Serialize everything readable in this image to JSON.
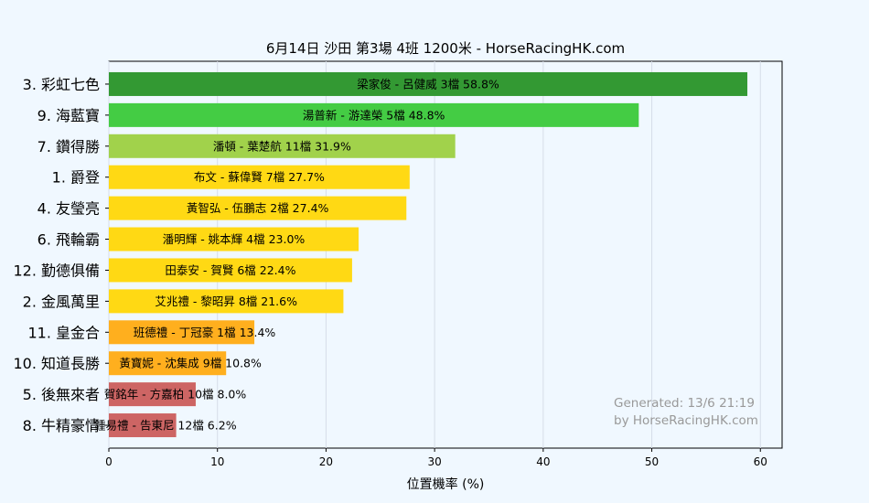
{
  "chart_data": {
    "type": "bar",
    "orientation": "horizontal",
    "title": "6月14日  沙田  第3場  4班  1200米 - HorseRacingHK.com",
    "xlabel": "位置機率 (%)",
    "ylabel": "",
    "xlim": [
      0,
      62
    ],
    "xticks": [
      "0",
      "10",
      "20",
      "30",
      "40",
      "50",
      "60"
    ],
    "grid": "vertical",
    "categories": [
      "3. 彩虹七色",
      "9. 海藍寶",
      "7. 鑽得勝",
      "1. 爵登",
      "4. 友瑩亮",
      "6. 飛輪霸",
      "12. 勤德俱備",
      "2. 金風萬里",
      "11. 皇金合",
      "10. 知道長勝",
      "5. 後無來者",
      "8. 牛精豪情"
    ],
    "values": [
      58.8,
      48.8,
      31.9,
      27.7,
      27.4,
      23.0,
      22.4,
      21.6,
      13.4,
      10.8,
      8.0,
      6.2
    ],
    "bar_labels": [
      "梁家俊 - 呂健威 3檔  58.8%",
      "湯普新 - 游達榮 5檔  48.8%",
      "潘頓 - 葉楚航 11檔  31.9%",
      "布文 - 蘇偉賢 7檔  27.7%",
      "黃智弘 - 伍鵬志 2檔  27.4%",
      "潘明輝 - 姚本輝 4檔  23.0%",
      "田泰安 - 賀賢 6檔  22.4%",
      "艾兆禮 - 黎昭昇 8檔  21.6%",
      "班德禮 - 丁冠豪 1檔  13.4%",
      "黃寶妮 - 沈集成 9檔  10.8%",
      "賀銘年 - 方嘉柏 10檔  8.0%",
      "鍾易禮 - 告東尼 12檔  6.2%"
    ],
    "colors": [
      "#339933",
      "#44cc44",
      "#a1d24b",
      "#ffd914",
      "#ffd914",
      "#ffd914",
      "#ffd914",
      "#ffd914",
      "#ffaf1e",
      "#ffaf1e",
      "#cd6564",
      "#cd6564"
    ],
    "watermark": [
      "Generated: 13/6 21:19",
      "by HorseRacingHK.com"
    ]
  }
}
